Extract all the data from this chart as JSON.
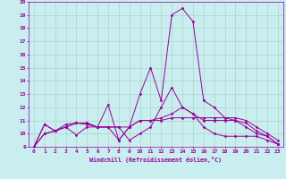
{
  "xlabel": "Windchill (Refroidissement éolien,°C)",
  "xlim": [
    -0.5,
    23.5
  ],
  "ylim": [
    9,
    20
  ],
  "yticks": [
    9,
    10,
    11,
    12,
    13,
    14,
    15,
    16,
    17,
    18,
    19,
    20
  ],
  "xticks": [
    0,
    1,
    2,
    3,
    4,
    5,
    6,
    7,
    8,
    9,
    10,
    11,
    12,
    13,
    14,
    15,
    16,
    17,
    18,
    19,
    20,
    21,
    22,
    23
  ],
  "bg_color": "#c8eef0",
  "line_color": "#990099",
  "grid_color": "#aaccbb",
  "series": [
    [
      9.0,
      10.7,
      10.2,
      10.5,
      9.9,
      10.5,
      10.5,
      10.5,
      9.5,
      10.5,
      13.0,
      15.0,
      12.5,
      19.0,
      19.5,
      18.5,
      12.5,
      12.0,
      11.2,
      11.0,
      10.5,
      10.0,
      9.8,
      9.2
    ],
    [
      9.0,
      10.7,
      10.2,
      10.7,
      10.8,
      10.7,
      10.5,
      10.5,
      10.5,
      10.5,
      11.0,
      11.0,
      11.0,
      11.2,
      11.2,
      11.2,
      11.2,
      11.2,
      11.2,
      11.2,
      11.0,
      10.5,
      10.0,
      9.5
    ],
    [
      9.0,
      10.0,
      10.2,
      10.5,
      10.8,
      10.8,
      10.5,
      10.5,
      10.5,
      9.5,
      10.0,
      10.5,
      12.0,
      13.5,
      12.0,
      11.5,
      10.5,
      10.0,
      9.8,
      9.8,
      9.8,
      9.8,
      9.5,
      9.2
    ],
    [
      9.0,
      10.0,
      10.2,
      10.5,
      10.8,
      10.8,
      10.5,
      12.2,
      9.5,
      10.5,
      11.0,
      11.0,
      11.2,
      11.5,
      12.0,
      11.5,
      11.0,
      11.0,
      11.0,
      11.0,
      10.8,
      10.2,
      9.8,
      9.2
    ]
  ]
}
